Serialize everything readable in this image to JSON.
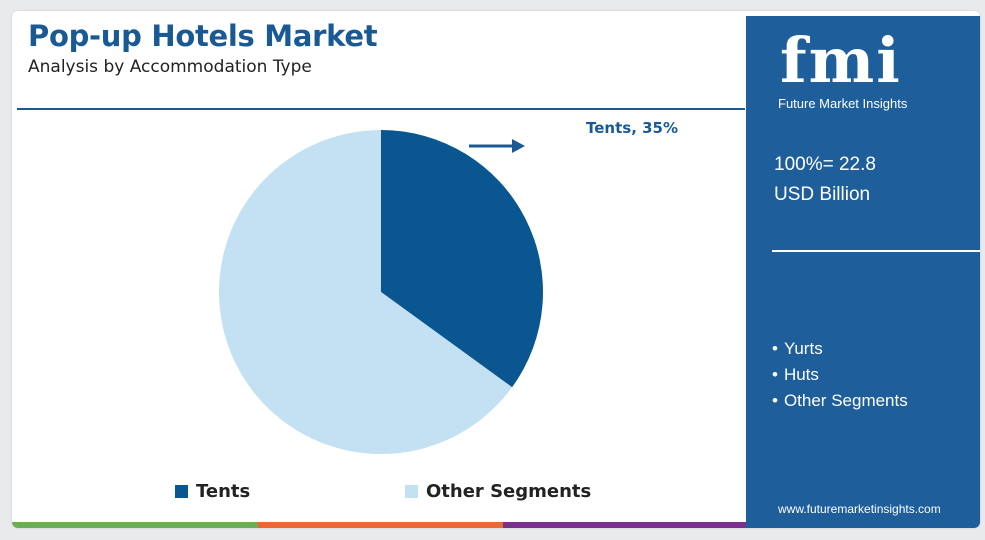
{
  "header": {
    "title": "Pop-up Hotels Market",
    "subtitle": "Analysis by Accommodation Type"
  },
  "chart_data": {
    "type": "pie",
    "title": "Pop-up Hotels Market",
    "subtitle": "Analysis by Accommodation Type",
    "slices": [
      {
        "name": "Tents",
        "value": 35,
        "color": "#0a5690"
      },
      {
        "name": "Other Segments",
        "value": 65,
        "color": "#c3e1f3"
      }
    ],
    "callout": "Tents, 35%",
    "legend_placement": "bottom",
    "legend": [
      "Tents",
      "Other Segments"
    ]
  },
  "sidebar": {
    "logo_text": "fmi",
    "logo_subtitle": "Future Market Insights",
    "total_line1": "100%= 22.8",
    "total_line2": "USD Billion",
    "segments": [
      "Yurts",
      "Huts",
      "Other Segments"
    ],
    "website": "www.futuremarketinsights.com"
  },
  "colors": {
    "brand_blue": "#1d5e9b",
    "title_blue": "#1a5a94",
    "bottom_bar": [
      "#6ab04c",
      "#e86a2c",
      "#7b2f8e"
    ]
  }
}
